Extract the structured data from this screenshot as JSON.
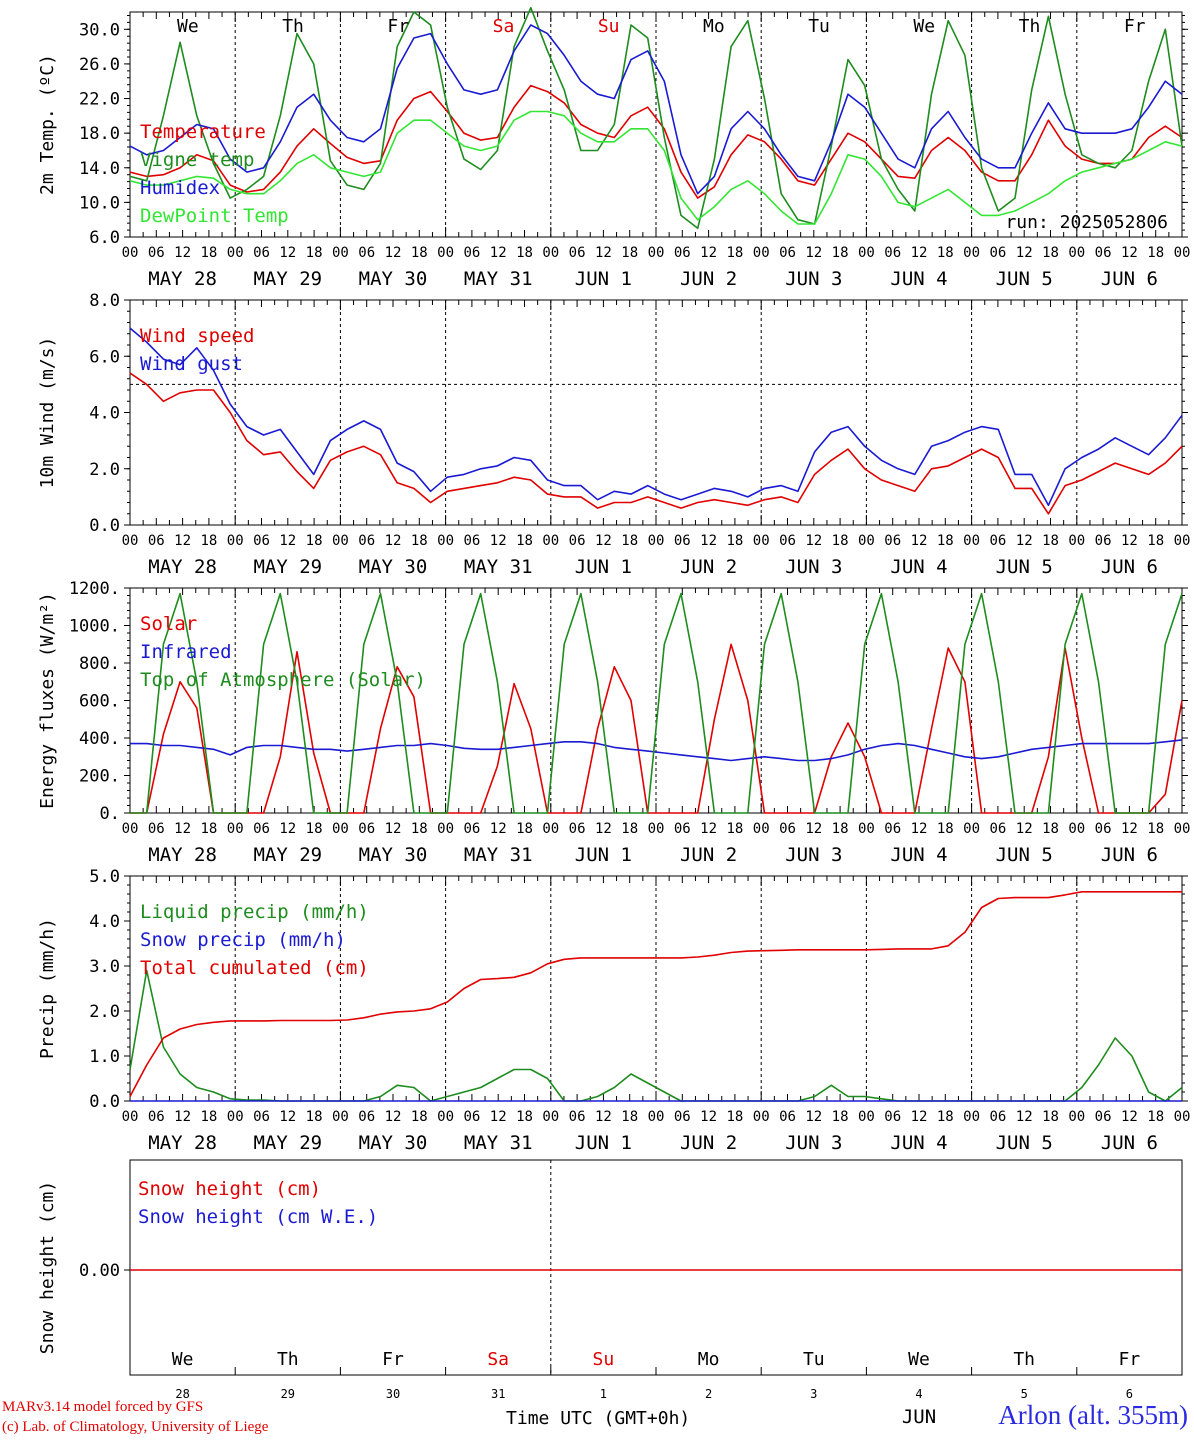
{
  "chart_data": [
    {
      "type": "line",
      "ylabel": "2m Temp. (ºC)",
      "ylim": [
        6.0,
        32.0
      ],
      "yticks": [
        "6.0",
        "10.0",
        "14.0",
        "18.0",
        "22.0",
        "26.0",
        "30.0"
      ],
      "grid": "dashed vertical line at each day boundary",
      "legend_position": "left",
      "run_label": "run: 2025052806",
      "x_start": "2025-05-28 00 UTC",
      "x_step_hours": 6,
      "series": [
        {
          "name": "Temperature",
          "color": "#e00000",
          "values": [
            13.5,
            13.0,
            13.2,
            14.0,
            15.5,
            14.8,
            12.0,
            11.2,
            11.5,
            13.5,
            16.5,
            18.5,
            16.8,
            15.2,
            14.5,
            14.8,
            19.5,
            22.0,
            22.8,
            20.5,
            18.0,
            17.2,
            17.5,
            21.0,
            23.5,
            22.8,
            21.5,
            19.0,
            18.0,
            17.5,
            20.0,
            21.0,
            18.5,
            13.5,
            10.5,
            11.8,
            15.5,
            17.8,
            17.0,
            15.0,
            12.5,
            12.0,
            15.0,
            18.0,
            17.0,
            15.0,
            13.0,
            12.8,
            16.0,
            17.5,
            16.0,
            13.5,
            12.5,
            12.5,
            15.5,
            19.5,
            16.5,
            15.0,
            14.5,
            14.5,
            15.0,
            17.5,
            18.8,
            17.5
          ]
        },
        {
          "name": "Vigne temp",
          "color": "#1e8c1e",
          "values": [
            13.0,
            12.5,
            20.0,
            28.5,
            20.0,
            14.5,
            10.5,
            11.5,
            13.0,
            20.0,
            29.5,
            26.0,
            14.8,
            12.0,
            11.5,
            14.5,
            28.0,
            32.0,
            30.5,
            21.0,
            15.0,
            13.8,
            16.0,
            28.0,
            32.5,
            27.5,
            23.0,
            16.0,
            16.0,
            19.0,
            30.5,
            29.0,
            17.5,
            8.5,
            7.0,
            15.0,
            28.0,
            31.0,
            22.0,
            11.0,
            8.0,
            7.5,
            16.5,
            26.5,
            23.5,
            15.0,
            11.5,
            9.0,
            22.5,
            31.0,
            27.0,
            14.0,
            9.0,
            10.5,
            23.0,
            31.5,
            22.5,
            15.5,
            14.5,
            14.0,
            16.0,
            24.0,
            30.0,
            16.5
          ]
        },
        {
          "name": "Humidex",
          "color": "#1a1ad2",
          "values": [
            16.5,
            15.5,
            16.0,
            17.5,
            19.0,
            18.5,
            15.0,
            13.5,
            14.0,
            17.0,
            21.0,
            22.5,
            19.5,
            17.5,
            17.0,
            18.5,
            25.5,
            29.0,
            29.5,
            26.0,
            23.0,
            22.5,
            23.0,
            27.5,
            30.5,
            29.5,
            27.0,
            24.0,
            22.5,
            22.0,
            26.5,
            27.5,
            24.0,
            15.5,
            11.0,
            13.0,
            18.5,
            20.5,
            18.5,
            15.5,
            13.0,
            12.5,
            17.0,
            22.5,
            21.0,
            18.0,
            15.0,
            14.0,
            18.5,
            20.5,
            17.5,
            15.0,
            14.0,
            14.0,
            18.0,
            21.5,
            18.5,
            18.0,
            18.0,
            18.0,
            18.5,
            21.0,
            24.0,
            22.5
          ]
        },
        {
          "name": "DewPoint Temp",
          "color": "#33e633",
          "values": [
            12.5,
            12.0,
            12.0,
            12.5,
            13.0,
            12.8,
            11.5,
            11.0,
            11.0,
            12.5,
            14.5,
            15.5,
            14.0,
            13.5,
            13.0,
            13.5,
            18.0,
            19.5,
            19.5,
            18.0,
            16.5,
            16.0,
            16.5,
            19.5,
            20.5,
            20.5,
            20.0,
            18.0,
            17.0,
            17.0,
            18.5,
            18.5,
            16.0,
            10.5,
            8.0,
            9.5,
            11.5,
            12.5,
            11.0,
            9.0,
            7.5,
            7.5,
            11.0,
            15.5,
            15.0,
            13.0,
            10.0,
            9.5,
            10.5,
            11.5,
            10.0,
            8.5,
            8.5,
            9.0,
            10.0,
            11.0,
            12.5,
            13.5,
            14.0,
            14.5,
            15.0,
            16.0,
            17.0,
            16.5
          ]
        }
      ]
    },
    {
      "type": "line",
      "ylabel": "10m Wind (m/s)",
      "ylim": [
        0.0,
        8.0
      ],
      "yticks": [
        "0.0",
        "2.0",
        "4.0",
        "6.0",
        "8.0"
      ],
      "reference_line": 5.0,
      "legend_position": "left",
      "series": [
        {
          "name": "Wind speed",
          "color": "#e00000",
          "values": [
            5.4,
            5.0,
            4.4,
            4.7,
            4.8,
            4.8,
            4.0,
            3.0,
            2.5,
            2.6,
            1.9,
            1.3,
            2.3,
            2.6,
            2.8,
            2.5,
            1.5,
            1.3,
            0.8,
            1.2,
            1.3,
            1.4,
            1.5,
            1.7,
            1.6,
            1.1,
            1.0,
            1.0,
            0.6,
            0.8,
            0.8,
            1.0,
            0.8,
            0.6,
            0.8,
            0.9,
            0.8,
            0.7,
            0.9,
            1.0,
            0.8,
            1.8,
            2.3,
            2.7,
            2.0,
            1.6,
            1.4,
            1.2,
            2.0,
            2.1,
            2.4,
            2.7,
            2.4,
            1.3,
            1.3,
            0.4,
            1.4,
            1.6,
            1.9,
            2.2,
            2.0,
            1.8,
            2.2,
            2.8
          ]
        },
        {
          "name": "Wind gust",
          "color": "#1a1ad2",
          "values": [
            7.0,
            6.5,
            5.9,
            5.7,
            6.3,
            5.5,
            4.3,
            3.5,
            3.2,
            3.4,
            2.6,
            1.8,
            3.0,
            3.4,
            3.7,
            3.4,
            2.2,
            1.9,
            1.2,
            1.7,
            1.8,
            2.0,
            2.1,
            2.4,
            2.3,
            1.6,
            1.4,
            1.4,
            0.9,
            1.2,
            1.1,
            1.4,
            1.1,
            0.9,
            1.1,
            1.3,
            1.2,
            1.0,
            1.3,
            1.4,
            1.2,
            2.6,
            3.3,
            3.5,
            2.8,
            2.3,
            2.0,
            1.8,
            2.8,
            3.0,
            3.3,
            3.5,
            3.4,
            1.8,
            1.8,
            0.7,
            2.0,
            2.4,
            2.7,
            3.1,
            2.8,
            2.5,
            3.1,
            3.9
          ]
        }
      ]
    },
    {
      "type": "line",
      "ylabel": "Energy fluxes (W/m²)",
      "ylim": [
        0,
        1200
      ],
      "yticks": [
        "0.",
        "200.",
        "400.",
        "600.",
        "800.",
        "1000.",
        "1200."
      ],
      "legend_position": "left",
      "series": [
        {
          "name": "Solar",
          "color": "#e00000",
          "values": [
            0,
            0,
            420,
            700,
            560,
            0,
            0,
            0,
            0,
            300,
            860,
            320,
            0,
            0,
            0,
            450,
            780,
            620,
            0,
            0,
            0,
            0,
            250,
            690,
            450,
            0,
            0,
            0,
            450,
            780,
            600,
            0,
            0,
            0,
            0,
            500,
            900,
            600,
            0,
            0,
            0,
            0,
            300,
            480,
            300,
            0,
            0,
            0,
            450,
            880,
            700,
            0,
            0,
            0,
            0,
            300,
            880,
            400,
            0,
            0,
            0,
            0,
            100,
            600
          ]
        },
        {
          "name": "Infrared",
          "color": "#1a1ad2",
          "values": [
            370,
            370,
            360,
            360,
            350,
            340,
            310,
            350,
            360,
            360,
            350,
            340,
            340,
            330,
            340,
            350,
            360,
            360,
            370,
            360,
            345,
            340,
            340,
            350,
            360,
            370,
            380,
            380,
            370,
            350,
            340,
            330,
            320,
            310,
            300,
            290,
            280,
            290,
            300,
            290,
            280,
            280,
            290,
            310,
            340,
            360,
            370,
            360,
            340,
            320,
            300,
            290,
            300,
            320,
            340,
            350,
            360,
            370,
            370,
            370,
            370,
            370,
            380,
            390
          ]
        },
        {
          "name": "Top of Atmosphere (Solar)",
          "color": "#1e8c1e",
          "peak": 1170,
          "values": [
            0,
            0,
            900,
            1170,
            700,
            0,
            0,
            0,
            900,
            1170,
            700,
            0,
            0,
            0,
            900,
            1170,
            700,
            0,
            0,
            0,
            900,
            1170,
            700,
            0,
            0,
            0,
            900,
            1170,
            700,
            0,
            0,
            0,
            900,
            1170,
            700,
            0,
            0,
            0,
            900,
            1170,
            700,
            0,
            0,
            0,
            900,
            1170,
            700,
            0,
            0,
            0,
            900,
            1170,
            700,
            0,
            0,
            0,
            900,
            1170,
            700,
            0,
            0,
            0,
            900,
            1170
          ]
        }
      ]
    },
    {
      "type": "line",
      "ylabel": "Precip (mm/h)",
      "ylim": [
        0.0,
        5.0
      ],
      "yticks": [
        "0.0",
        "1.0",
        "2.0",
        "3.0",
        "4.0",
        "5.0"
      ],
      "legend_position": "left",
      "series": [
        {
          "name": "Liquid precip (mm/h)",
          "color": "#1e8c1e",
          "values": [
            0.7,
            2.9,
            1.2,
            0.6,
            0.3,
            0.2,
            0.05,
            0.02,
            0.02,
            0.0,
            0.0,
            0.0,
            0.0,
            0.0,
            0.0,
            0.1,
            0.35,
            0.3,
            0.0,
            0.1,
            0.2,
            0.3,
            0.5,
            0.7,
            0.7,
            0.5,
            0.0,
            0.0,
            0.1,
            0.3,
            0.6,
            0.4,
            0.2,
            0.0,
            0.0,
            0.0,
            0.0,
            0.0,
            0.0,
            0.0,
            0.0,
            0.1,
            0.35,
            0.1,
            0.1,
            0.05,
            0.0,
            0.0,
            0.0,
            0.0,
            0.0,
            0.0,
            0.0,
            0.0,
            0.0,
            0.0,
            0.0,
            0.3,
            0.8,
            1.4,
            1.0,
            0.2,
            0.0,
            0.3
          ]
        },
        {
          "name": "Snow precip (mm/h)",
          "color": "#1a1ad2",
          "values": [
            0,
            0,
            0,
            0,
            0,
            0,
            0,
            0,
            0,
            0,
            0,
            0,
            0,
            0,
            0,
            0,
            0,
            0,
            0,
            0,
            0,
            0,
            0,
            0,
            0,
            0,
            0,
            0,
            0,
            0,
            0,
            0,
            0,
            0,
            0,
            0,
            0,
            0,
            0,
            0,
            0,
            0,
            0,
            0,
            0,
            0,
            0,
            0,
            0,
            0,
            0,
            0,
            0,
            0,
            0,
            0,
            0,
            0,
            0,
            0,
            0,
            0,
            0,
            0
          ]
        },
        {
          "name": "Total cumulated (cm)",
          "color": "#e00000",
          "values": [
            0.1,
            0.8,
            1.4,
            1.6,
            1.7,
            1.75,
            1.78,
            1.78,
            1.78,
            1.79,
            1.79,
            1.79,
            1.79,
            1.8,
            1.85,
            1.93,
            1.98,
            2.0,
            2.05,
            2.2,
            2.5,
            2.7,
            2.72,
            2.75,
            2.85,
            3.05,
            3.15,
            3.18,
            3.18,
            3.18,
            3.18,
            3.18,
            3.18,
            3.18,
            3.2,
            3.24,
            3.3,
            3.33,
            3.34,
            3.35,
            3.36,
            3.36,
            3.36,
            3.36,
            3.36,
            3.37,
            3.38,
            3.38,
            3.38,
            3.45,
            3.75,
            4.3,
            4.5,
            4.52,
            4.52,
            4.52,
            4.58,
            4.65,
            4.65,
            4.65,
            4.65,
            4.65,
            4.65,
            4.65
          ]
        }
      ]
    },
    {
      "type": "line",
      "ylabel": "Snow height (cm)",
      "yticks": [
        "0.00"
      ],
      "legend_position": "left",
      "series": [
        {
          "name": "Snow height (cm)",
          "color": "#e00000",
          "values": [
            0.0,
            0.0
          ]
        },
        {
          "name": "Snow height (cm W.E.)",
          "color": "#1a1ad2",
          "values": [
            0.0,
            0.0
          ]
        }
      ]
    }
  ],
  "axes": {
    "weekdays": [
      "We",
      "Th",
      "Fr",
      "Sa",
      "Su",
      "Mo",
      "Tu",
      "We",
      "Th",
      "Fr"
    ],
    "weekend_color": "#e00000",
    "weekday_color": "#000000",
    "hour_labels": [
      "00",
      "06",
      "12",
      "18"
    ],
    "end_hour_label": "00",
    "dates": [
      "MAY 28",
      "MAY 29",
      "MAY 30",
      "MAY 31",
      "JUN  1",
      "JUN  2",
      "JUN  3",
      "JUN  4",
      "JUN  5",
      "JUN  6"
    ],
    "day_numbers": [
      "28",
      "29",
      "30",
      "31",
      "1",
      "2",
      "3",
      "4",
      "5",
      "6"
    ],
    "month_label": "JUN",
    "xlabel": "Time UTC (GMT+0h)"
  },
  "footer": {
    "credit_line1": "MARv3.14 model forced by GFS",
    "credit_line2": "(c) Lab. of Climatology, University of Liege",
    "station": "Arlon (alt. 355m)"
  }
}
